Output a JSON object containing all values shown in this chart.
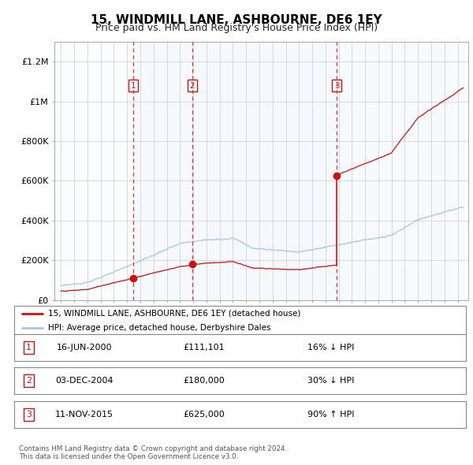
{
  "title": "15, WINDMILL LANE, ASHBOURNE, DE6 1EY",
  "subtitle": "Price paid vs. HM Land Registry's House Price Index (HPI)",
  "ylim": [
    0,
    1300000
  ],
  "yticks": [
    0,
    200000,
    400000,
    600000,
    800000,
    1000000,
    1200000
  ],
  "ytick_labels": [
    "£0",
    "£200K",
    "£400K",
    "£600K",
    "£800K",
    "£1M",
    "£1.2M"
  ],
  "sale_year_floats": [
    2000.458,
    2004.919,
    2015.861
  ],
  "sale_prices": [
    111101,
    180000,
    625000
  ],
  "sale_labels": [
    "1",
    "2",
    "3"
  ],
  "hpi_line_color": "#a8c4e0",
  "price_line_color": "#cc1111",
  "sale_marker_color": "#cc1111",
  "vline_color": "#ee3333",
  "legend_entries": [
    "15, WINDMILL LANE, ASHBOURNE, DE6 1EY (detached house)",
    "HPI: Average price, detached house, Derbyshire Dales"
  ],
  "table_rows": [
    [
      "1",
      "16-JUN-2000",
      "£111,101",
      "16% ↓ HPI"
    ],
    [
      "2",
      "03-DEC-2004",
      "£180,000",
      "30% ↓ HPI"
    ],
    [
      "3",
      "11-NOV-2015",
      "£625,000",
      "90% ↑ HPI"
    ]
  ],
  "footnote": "Contains HM Land Registry data © Crown copyright and database right 2024.\nThis data is licensed under the Open Government Licence v3.0."
}
